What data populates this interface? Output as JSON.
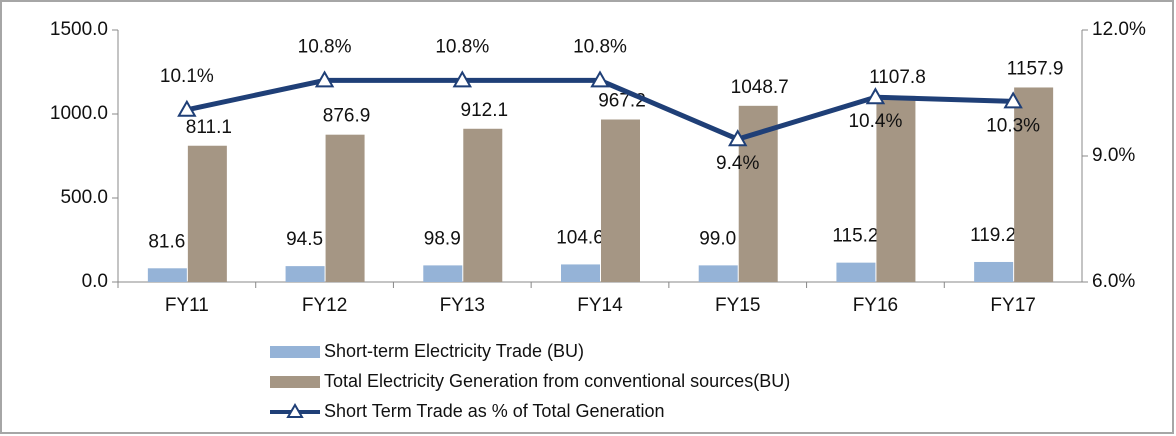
{
  "chart_data": {
    "type": "bar-line",
    "categories": [
      "FY11",
      "FY12",
      "FY13",
      "FY14",
      "FY15",
      "FY16",
      "FY17"
    ],
    "series": [
      {
        "name": "Short-term Electricity Trade (BU)",
        "type": "bar",
        "color": "#95b3d7",
        "values": [
          81.6,
          94.5,
          98.9,
          104.6,
          99.0,
          115.2,
          119.2
        ],
        "value_labels": [
          "81.6",
          "94.5",
          "98.9",
          "104.6",
          "99.0",
          "115.2",
          "119.2"
        ]
      },
      {
        "name": "Total Electricity Generation from conventional sources(BU)",
        "type": "bar",
        "color": "#a59684",
        "values": [
          811.1,
          876.9,
          912.1,
          967.2,
          1048.7,
          1107.8,
          1157.9
        ],
        "value_labels": [
          "811.1",
          "876.9",
          "912.1",
          "967.2",
          "1048.7",
          "1107.8",
          "1157.9"
        ]
      },
      {
        "name": "Short Term Trade as % of Total Generation",
        "type": "line",
        "axis": "y2",
        "color": "#1f3f77",
        "values": [
          10.1,
          10.8,
          10.8,
          10.8,
          9.4,
          10.4,
          10.3
        ],
        "value_labels": [
          "10.1%",
          "10.8%",
          "10.8%",
          "10.8%",
          "9.4%",
          "10.4%",
          "10.3%"
        ]
      }
    ],
    "ylim": [
      0,
      1500
    ],
    "yticks": [
      {
        "value": 0,
        "label": "0.0"
      },
      {
        "value": 500,
        "label": "500.0"
      },
      {
        "value": 1000,
        "label": "1000.0"
      },
      {
        "value": 1500,
        "label": "1500.0"
      }
    ],
    "y2lim": [
      6,
      12
    ],
    "y2ticks": [
      {
        "value": 6,
        "label": "6.0%"
      },
      {
        "value": 9,
        "label": "9.0%"
      },
      {
        "value": 12,
        "label": "12.0%"
      }
    ],
    "legend": "bottom"
  }
}
